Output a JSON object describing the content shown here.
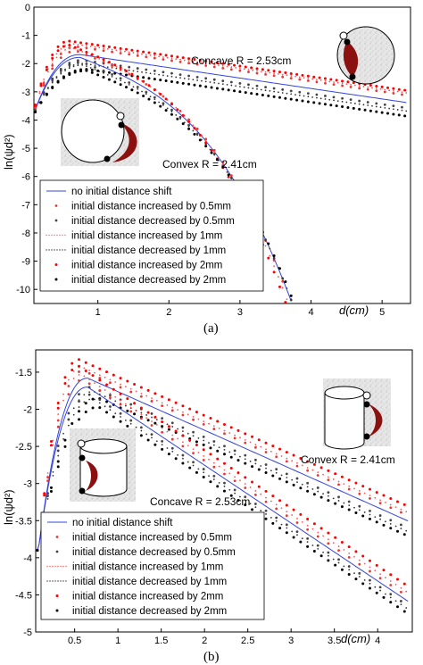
{
  "chart_data": [
    {
      "type": "line",
      "panel_caption": "(a)",
      "xlabel": "d(cm)",
      "ylabel": "ln(ψd²)",
      "xlim": [
        0.1,
        5.4
      ],
      "ylim": [
        -10.5,
        0
      ],
      "xticks": [
        1,
        2,
        3,
        4,
        5
      ],
      "yticks": [
        0,
        -1,
        -2,
        -3,
        -4,
        -5,
        -6,
        -7,
        -8,
        -9,
        -10
      ],
      "grid": false,
      "legend_position": "bottom-left",
      "annotations": [
        {
          "text": "Concave R = 2.53cm",
          "at": [
            3.0,
            -2.2
          ]
        },
        {
          "text": "Convex R = 2.41cm",
          "at": [
            2.1,
            -5.8
          ]
        }
      ],
      "legend": [
        "no initial distance shift",
        "initial distance increased by 0.5mm",
        "initial distance decreased by 0.5mm",
        "initial distance increased by 1mm",
        "initial distance decreased by 1mm",
        "initial distance increased by 2mm",
        "initial distance decreased by 2mm"
      ],
      "model": {
        "concave_tail_slope": -0.37,
        "convex_c0": 1.0,
        "convex_c1": -1.0,
        "convex_c3": -0.27
      },
      "series": [
        {
          "name": "no initial distance shift",
          "color": "#3344dd",
          "style": "solid",
          "peak_x": 0.75,
          "peak_concave": -1.68,
          "peak_convex": -1.78
        },
        {
          "name": "initial distance increased by 0.5mm",
          "color": "#ee3333",
          "style": "sparse",
          "peak_x": 0.7,
          "peak_concave": -1.4,
          "peak_convex": -1.55
        },
        {
          "name": "initial distance decreased by 0.5mm",
          "color": "#444444",
          "style": "sparse",
          "peak_x": 0.78,
          "peak_concave": -1.88,
          "peak_convex": -1.95
        },
        {
          "name": "initial distance increased by 1mm",
          "color": "#ff5555",
          "style": "dotted",
          "peak_x": 0.65,
          "peak_concave": -1.3,
          "peak_convex": -1.45
        },
        {
          "name": "initial distance decreased by 1mm",
          "color": "#333333",
          "style": "dotted",
          "peak_x": 0.8,
          "peak_concave": -2.0,
          "peak_convex": -2.05
        },
        {
          "name": "initial distance increased by 2mm",
          "color": "#ff0000",
          "style": "dense",
          "peak_x": 0.6,
          "peak_concave": -1.2,
          "peak_convex": -1.35
        },
        {
          "name": "initial distance decreased by 2mm",
          "color": "#000000",
          "style": "dense",
          "peak_x": 0.85,
          "peak_concave": -2.2,
          "peak_convex": -2.25
        }
      ]
    },
    {
      "type": "line",
      "panel_caption": "(b)",
      "xlabel": "d(cm)",
      "ylabel": "ln(ψd²)",
      "xlim": [
        0.05,
        4.4
      ],
      "ylim": [
        -5.0,
        -1.2
      ],
      "xticks": [
        0.5,
        1,
        1.5,
        2,
        2.5,
        3,
        3.5,
        4
      ],
      "yticks": [
        -1.5,
        -2,
        -2.5,
        -3,
        -3.5,
        -4,
        -4.5,
        -5
      ],
      "grid": false,
      "legend_position": "bottom-left",
      "annotations": [
        {
          "text": "Convex R = 2.41cm",
          "at": [
            3.25,
            -3.0
          ]
        },
        {
          "text": "Concave R = 2.53cm",
          "at": [
            1.7,
            -3.4
          ]
        }
      ],
      "legend": [
        "no initial distance shift",
        "initial distance increased by 0.5mm",
        "initial distance decreased by 0.5mm",
        "initial distance increased by 1mm",
        "initial distance decreased by 1mm",
        "initial distance increased by 2mm",
        "initial distance decreased by 2mm"
      ],
      "model": {
        "convex_tail_slope": -0.52,
        "concave_tail_slope": -0.78
      },
      "series": [
        {
          "name": "no initial distance shift",
          "color": "#3344dd",
          "style": "solid",
          "peak_x": 0.65,
          "peak_convex": -1.58,
          "peak_concave": -1.7
        },
        {
          "name": "initial distance increased by 0.5mm",
          "color": "#ee3333",
          "style": "sparse",
          "peak_x": 0.6,
          "peak_convex": -1.48,
          "peak_concave": -1.6
        },
        {
          "name": "initial distance decreased by 0.5mm",
          "color": "#444444",
          "style": "sparse",
          "peak_x": 0.7,
          "peak_convex": -1.7,
          "peak_concave": -1.8
        },
        {
          "name": "initial distance increased by 1mm",
          "color": "#ff5555",
          "style": "dotted",
          "peak_x": 0.58,
          "peak_convex": -1.43,
          "peak_concave": -1.53
        },
        {
          "name": "initial distance decreased by 1mm",
          "color": "#333333",
          "style": "dotted",
          "peak_x": 0.72,
          "peak_convex": -1.76,
          "peak_concave": -1.86
        },
        {
          "name": "initial distance increased by 2mm",
          "color": "#ff0000",
          "style": "dense",
          "peak_x": 0.55,
          "peak_convex": -1.33,
          "peak_concave": -1.42
        },
        {
          "name": "initial distance decreased by 2mm",
          "color": "#000000",
          "style": "dense",
          "peak_x": 0.78,
          "peak_convex": -1.85,
          "peak_concave": -1.97
        }
      ]
    }
  ]
}
